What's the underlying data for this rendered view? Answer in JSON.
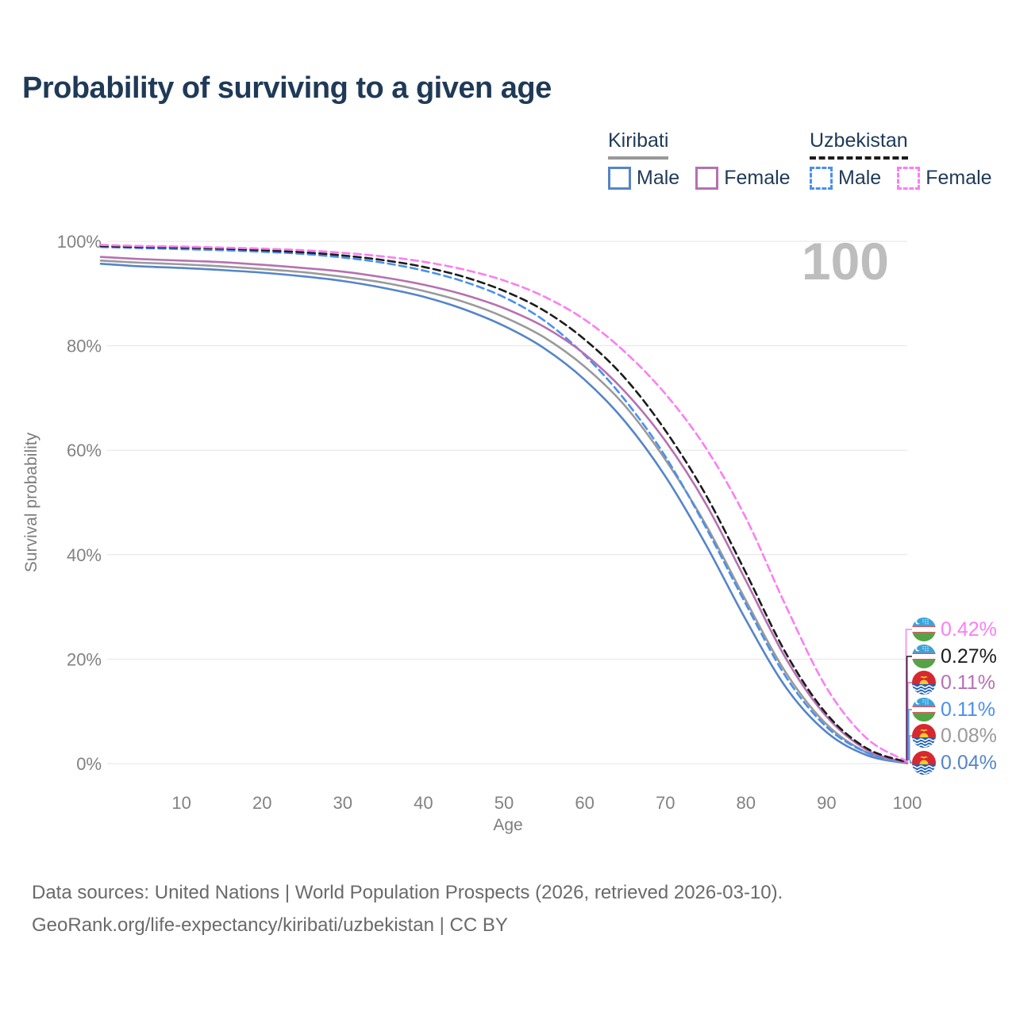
{
  "title": "Probability of surviving to a given age",
  "watermark": "100",
  "legend": {
    "groups": [
      {
        "name": "Kiribati",
        "line_style": "solid",
        "underline_color": "#999999",
        "items": [
          {
            "label": "Male",
            "color": "#5585c8"
          },
          {
            "label": "Female",
            "color": "#b671b2"
          }
        ]
      },
      {
        "name": "Uzbekistan",
        "line_style": "dashed",
        "underline_color": "#1c1c1c",
        "items": [
          {
            "label": "Male",
            "color": "#4a90ee"
          },
          {
            "label": "Female",
            "color": "#fc7ef2"
          }
        ]
      }
    ]
  },
  "chart_data": {
    "type": "line",
    "title": "Probability of surviving to a given age",
    "xlabel": "Age",
    "ylabel": "Survival probability",
    "xlim": [
      0,
      100
    ],
    "ylim": [
      0,
      100
    ],
    "grid": "horizontal",
    "legend_position": "top-right",
    "x_ticks": [
      10,
      20,
      30,
      40,
      50,
      60,
      70,
      80,
      90,
      100
    ],
    "y_ticks": [
      {
        "value": 0,
        "label": "0%"
      },
      {
        "value": 20,
        "label": "20%"
      },
      {
        "value": 40,
        "label": "40%"
      },
      {
        "value": 60,
        "label": "60%"
      },
      {
        "value": 80,
        "label": "80%"
      },
      {
        "value": 100,
        "label": "100%"
      }
    ],
    "x": [
      0,
      5,
      10,
      15,
      20,
      25,
      30,
      35,
      40,
      45,
      50,
      55,
      60,
      65,
      70,
      75,
      80,
      85,
      90,
      95,
      100
    ],
    "series": [
      {
        "name": "Uzbekistan Female",
        "country": "Uzbekistan",
        "sex": "Female",
        "color": "#fc7ef2",
        "dashed": true,
        "end_label": "0.42%",
        "flag": "kiribati-uzbekistan",
        "values": [
          99.3,
          99.1,
          99.0,
          98.8,
          98.6,
          98.3,
          97.8,
          97.1,
          96.1,
          94.6,
          92.5,
          89.4,
          85.0,
          78.8,
          70.8,
          60.5,
          47.0,
          30.0,
          14.5,
          4.8,
          0.42
        ]
      },
      {
        "name": "Uzbekistan Both sexes",
        "country": "Uzbekistan",
        "sex": "Both",
        "color": "#1c1c1c",
        "dashed": true,
        "end_label": "0.27%",
        "flag": "uzbekistan",
        "values": [
          99.1,
          98.9,
          98.8,
          98.6,
          98.3,
          97.9,
          97.3,
          96.4,
          95.1,
          93.2,
          90.5,
          86.7,
          81.2,
          73.8,
          63.8,
          51.5,
          36.5,
          21.0,
          9.5,
          2.9,
          0.27
        ]
      },
      {
        "name": "Kiribati Female",
        "country": "Kiribati",
        "sex": "Female",
        "color": "#b671b2",
        "dashed": false,
        "end_label": "0.11%",
        "flag": "kiribati",
        "values": [
          97.0,
          96.6,
          96.3,
          96.0,
          95.5,
          94.9,
          94.2,
          93.1,
          91.7,
          89.8,
          87.2,
          83.6,
          78.4,
          71.2,
          61.8,
          49.8,
          35.0,
          20.0,
          9.0,
          2.6,
          0.11
        ]
      },
      {
        "name": "Uzbekistan Male",
        "country": "Uzbekistan",
        "sex": "Male",
        "color": "#4a90ee",
        "dashed": true,
        "end_label": "0.11%",
        "flag": "uzbekistan",
        "values": [
          98.9,
          98.7,
          98.5,
          98.3,
          98.0,
          97.6,
          96.9,
          95.9,
          94.4,
          92.3,
          89.3,
          84.8,
          78.2,
          69.6,
          58.8,
          45.3,
          30.5,
          16.5,
          7.0,
          2.1,
          0.11
        ]
      },
      {
        "name": "Kiribati Both sexes",
        "country": "Kiribati",
        "sex": "Both",
        "color": "#9a9a9a",
        "dashed": false,
        "end_label": "0.08%",
        "flag": "kiribati",
        "values": [
          96.3,
          95.9,
          95.6,
          95.2,
          94.7,
          94.1,
          93.2,
          92.1,
          90.5,
          88.4,
          85.5,
          81.6,
          76.0,
          68.5,
          58.2,
          45.8,
          31.2,
          17.3,
          7.5,
          2.1,
          0.08
        ]
      },
      {
        "name": "Kiribati Male",
        "country": "Kiribati",
        "sex": "Male",
        "color": "#5585c8",
        "dashed": false,
        "end_label": "0.04%",
        "flag": "kiribati",
        "values": [
          95.7,
          95.2,
          94.9,
          94.5,
          94.0,
          93.3,
          92.4,
          91.1,
          89.4,
          87.0,
          83.8,
          79.5,
          73.5,
          65.5,
          55.0,
          42.0,
          27.5,
          14.5,
          6.0,
          1.6,
          0.04
        ]
      }
    ]
  },
  "footer": {
    "line1": "Data sources: United Nations | World Population Prospects (2026, retrieved 2026-03-10).",
    "line2": "GeoRank.org/life-expectancy/kiribati/uzbekistan | CC BY"
  }
}
